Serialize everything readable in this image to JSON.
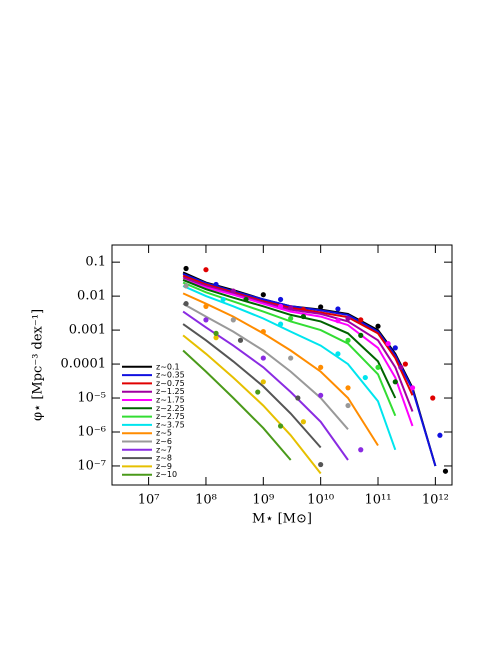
{
  "chart_data": {
    "type": "line",
    "xlabel": "M⋆ [M⊙]",
    "ylabel": "φ⋆ [Mpc⁻³ dex⁻¹]",
    "log_x": true,
    "log_y": true,
    "xlim": [
      2300000,
      1950000000000
    ],
    "ylim": [
      0.32,
      2.75e-08
    ],
    "xticks": [
      {
        "value": 10000000,
        "label": "10⁷"
      },
      {
        "value": 100000000,
        "label": "10⁸"
      },
      {
        "value": 1000000000,
        "label": "10⁹"
      },
      {
        "value": 10000000000,
        "label": "10¹⁰"
      },
      {
        "value": 100000000000,
        "label": "10¹¹"
      },
      {
        "value": 1000000000000,
        "label": "10¹²"
      }
    ],
    "yticks": [
      0.1,
      0.01,
      0.001,
      0.0001,
      {
        "value": 1e-05,
        "label": "10⁻⁵"
      },
      {
        "value": 1e-06,
        "label": "10⁻⁶"
      },
      {
        "value": 1e-07,
        "label": "10⁻⁷"
      }
    ],
    "legend": "lower left",
    "x": [
      40000000,
      100000000,
      300000000,
      1000000000,
      3000000000,
      10000000000,
      30000000000,
      100000000000,
      200000000000,
      400000000000,
      1000000000000
    ],
    "series": [
      {
        "name": "z~0.1",
        "color": "#000000",
        "values": [
          0.05,
          0.025,
          0.015,
          0.008,
          0.005,
          0.004,
          0.003,
          0.001,
          0.0002,
          2e-05,
          1e-07
        ],
        "points": {
          "x": [
            45000000,
            1000000000,
            10000000000,
            100000000000,
            1500000000000
          ],
          "y": [
            0.065,
            0.011,
            0.0048,
            0.0013,
            7e-08
          ]
        }
      },
      {
        "name": "z~0.35",
        "color": "#1010e0",
        "values": [
          0.045,
          0.024,
          0.014,
          0.008,
          0.005,
          0.0038,
          0.0028,
          0.0009,
          0.00018,
          1.8e-05,
          1e-07
        ],
        "points": {
          "x": [
            150000000,
            2000000000,
            20000000000,
            200000000000,
            1200000000000
          ],
          "y": [
            0.022,
            0.008,
            0.0042,
            0.0003,
            8e-07
          ]
        }
      },
      {
        "name": "z~0.75",
        "color": "#e00000",
        "values": [
          0.04,
          0.022,
          0.013,
          0.007,
          0.0045,
          0.0033,
          0.0024,
          0.0008,
          0.00015,
          1.2e-05,
          null
        ],
        "points": {
          "x": [
            100000000,
            5000000000,
            50000000000,
            300000000000,
            900000000000
          ],
          "y": [
            0.06,
            0.004,
            0.002,
            0.0001,
            1e-05
          ]
        }
      },
      {
        "name": "z~1.25",
        "color": "#a000a0",
        "values": [
          0.035,
          0.02,
          0.012,
          0.0065,
          0.004,
          0.003,
          0.0018,
          0.0005,
          8e-05,
          4e-06,
          null
        ],
        "points": {
          "x": [
            300000000,
            3000000000,
            30000000000,
            250000000000
          ],
          "y": [
            0.014,
            0.0045,
            0.0022,
            8e-05
          ]
        }
      },
      {
        "name": "z~1.75",
        "color": "#ff00ff",
        "values": [
          0.03,
          0.018,
          0.011,
          0.006,
          0.0035,
          0.0025,
          0.0014,
          0.0003,
          4e-05,
          1.5e-06,
          null
        ],
        "points": {
          "x": [
            2000000000,
            20000000000,
            150000000000,
            400000000000
          ],
          "y": [
            0.005,
            0.0019,
            0.0004,
            2e-05
          ]
        }
      },
      {
        "name": "z~2.25",
        "color": "#006400",
        "values": [
          0.03,
          0.016,
          0.009,
          0.005,
          0.0028,
          0.0018,
          0.0008,
          0.00012,
          1e-05,
          null,
          null
        ],
        "points": {
          "x": [
            500000000,
            5000000000,
            50000000000,
            200000000000
          ],
          "y": [
            0.008,
            0.0025,
            0.0007,
            3e-05
          ]
        }
      },
      {
        "name": "z~2.75",
        "color": "#33dd33",
        "values": [
          0.025,
          0.013,
          0.007,
          0.0035,
          0.0018,
          0.001,
          0.0004,
          5e-05,
          3e-06,
          null,
          null
        ],
        "points": {
          "x": [
            3000000000,
            30000000000,
            100000000000
          ],
          "y": [
            0.0022,
            0.0005,
            8e-05
          ]
        }
      },
      {
        "name": "z~3.75",
        "color": "#00e5ee",
        "values": [
          0.02,
          0.01,
          0.005,
          0.0022,
          0.0009,
          0.00035,
          0.0001,
          8e-06,
          3e-07,
          null,
          null
        ],
        "points": {
          "x": [
            200000000,
            2000000000,
            20000000000,
            60000000000
          ],
          "y": [
            0.008,
            0.0015,
            0.0002,
            4e-05
          ]
        }
      },
      {
        "name": "z~5",
        "color": "#ff8c00",
        "values": [
          0.012,
          0.006,
          0.0025,
          0.0008,
          0.00025,
          6e-05,
          1e-05,
          4e-07,
          null,
          null,
          null
        ],
        "points": {
          "x": [
            100000000,
            1000000000,
            10000000000,
            30000000000
          ],
          "y": [
            0.005,
            0.0009,
            8e-05,
            2e-05
          ]
        }
      },
      {
        "name": "z~6",
        "color": "#999999",
        "values": [
          0.006,
          0.0025,
          0.0009,
          0.00025,
          6e-05,
          1e-05,
          1.2e-06,
          null,
          null,
          null,
          null
        ],
        "points": {
          "x": [
            45000000,
            300000000,
            3000000000,
            30000000000
          ],
          "y": [
            0.02,
            0.002,
            0.00015,
            6e-06
          ]
        }
      },
      {
        "name": "z~7",
        "color": "#8a2be2",
        "values": [
          0.0035,
          0.0012,
          0.00035,
          8e-05,
          1.5e-05,
          2e-06,
          1.5e-07,
          null,
          null,
          null,
          null
        ],
        "points": {
          "x": [
            100000000,
            1000000000,
            10000000000,
            50000000000
          ],
          "y": [
            0.002,
            0.00015,
            1.2e-05,
            3e-07
          ]
        }
      },
      {
        "name": "z~8",
        "color": "#555555",
        "values": [
          0.0015,
          0.0005,
          0.00012,
          2.2e-05,
          3.5e-06,
          3.5e-07,
          null,
          null,
          null,
          null,
          null
        ],
        "points": {
          "x": [
            45000000,
            400000000,
            4000000000,
            10000000000
          ],
          "y": [
            0.006,
            0.0005,
            1e-05,
            1.1e-07
          ]
        }
      },
      {
        "name": "z~9",
        "color": "#e6c000",
        "values": [
          0.0007,
          0.0002,
          4e-05,
          6e-06,
          8e-07,
          6e-08,
          null,
          null,
          null,
          null,
          null
        ],
        "points": {
          "x": [
            150000000,
            1000000000,
            5000000000
          ],
          "y": [
            0.0006,
            3e-05,
            2e-06
          ]
        }
      },
      {
        "name": "z~10",
        "color": "#4a9a1a",
        "values": [
          0.00025,
          6e-05,
          1e-05,
          1.3e-06,
          1.5e-07,
          null,
          null,
          null,
          null,
          null,
          null
        ],
        "points": {
          "x": [
            150000000,
            800000000,
            2000000000
          ],
          "y": [
            0.0008,
            1.5e-05,
            1.5e-06
          ]
        }
      }
    ]
  }
}
